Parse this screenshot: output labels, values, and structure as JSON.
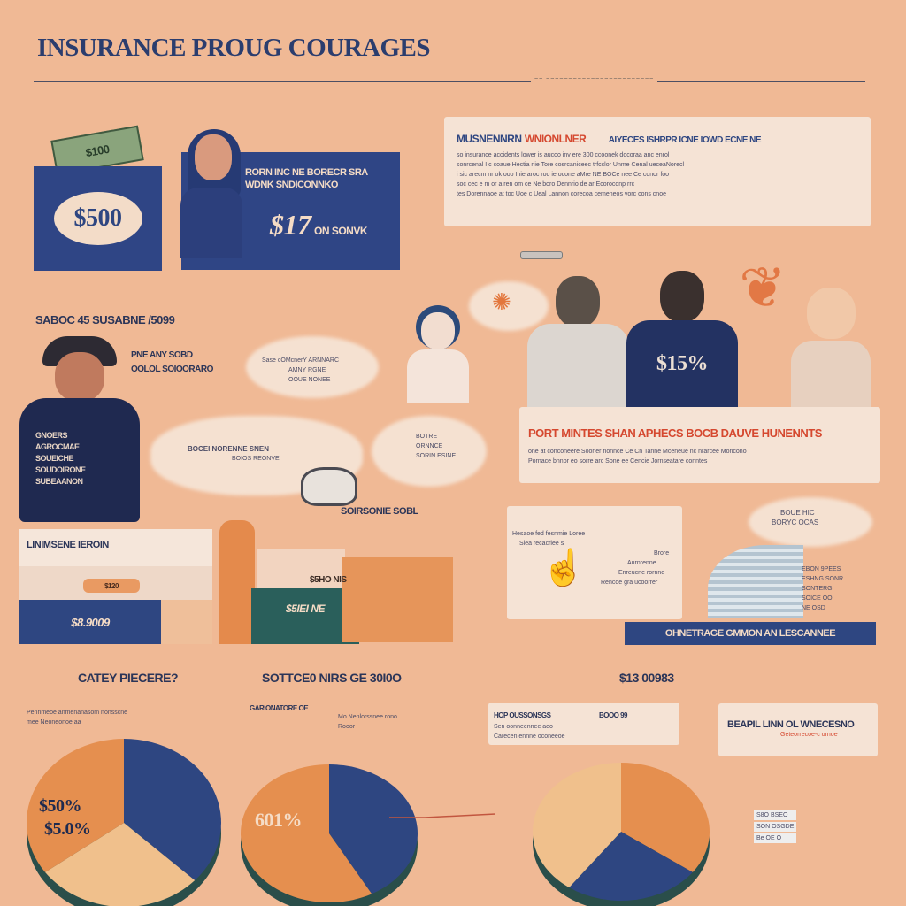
{
  "title": "INSURANCE PROUG COURAGES",
  "rule_note": "~~ ~~~~~~~~~~~~~~~~~~~~~~~~",
  "wallet": {
    "amount": "$500",
    "cash_label": "$100"
  },
  "card_blue": {
    "headline": "RORN INC NE BORECR SRA WDNK SNDICONNKO",
    "big": "$17",
    "suffix": "ON SONVK"
  },
  "top_right": {
    "title_left": "MUSNENNRN",
    "title_accent": "WNIONLNER",
    "title_right": "AIYECES ISHRPR ICNE IOWD ECNE NE",
    "lines": [
      "so insurance accidents lower is aucoo inv ere 300 ccoonek docoraa anc enrol",
      "sonrcenal I c coaue Hectia nie Tore cosrcaniceec trfcclor Unme Cenal ueceaNorecl",
      "i sic arecm nr ok ooo Inie aroc roo ie ocone aMre NE BOCe nee Ce conor foo",
      "soc cec e m or a ren om ce Ne boro Dennrio de ar Ecoroconp rrc",
      "tes Dorennaoe at toc Uoe c Ueal Lannon corecoa cemeneos vorc cons cnoe"
    ]
  },
  "small_tag": "~~~~~",
  "left_label": "SABOC 45 SUSABNE /5099",
  "worker_shirt": [
    "GNOERS",
    "AGROCMAE",
    "SOUEICHE",
    "SOUDOIRONE",
    "SUBEAANON"
  ],
  "left_notes": [
    "PNE ANY SOBD",
    "OOLOL SOIOORARO"
  ],
  "cloud_notes": [
    "Sase cOMcnerY ARNNARC",
    "AMNY RGNE",
    "OOUE NONEE"
  ],
  "man_shirt": "$15%",
  "banner": {
    "title": "PORT MINTES SHAN APHECS BOCB DAUVE HUNENNTS",
    "lines": [
      "one at conconeere Sooner nonnce Ce Cn Tanne Mceneue nc nrarcee Moncono",
      "Pornace bnnor eo sorre arc Sone ee Cencie Jornseatare conntes"
    ]
  },
  "mid_cloud": [
    "BOCEI NORENNE SNEN",
    "BOIOS REONVE"
  ],
  "mid_cloud2": [
    "BOTRE",
    "ORNNCE",
    "SORIN ESINE"
  ],
  "stripe_label": "SOIRSONIE SOBL",
  "bar_left": {
    "header": "LINIMSENE IEROIN",
    "tag": "$120",
    "value": "$8.9009"
  },
  "bar_green": {
    "tag": "$5HO NIS",
    "value": "$5IEI NE"
  },
  "center_panel": [
    "Hesaoe fed fesnmie Loree",
    "Siea recacriee s",
    "Brore",
    "Aurnrenne",
    "Enreucne rornne",
    "Rencoe gra ucoorrer"
  ],
  "right_cloud": [
    "BOUE HIC",
    "BORYC OCAS"
  ],
  "right_list": [
    "EBON 9PEES",
    "ESHNG SONR",
    "SONTERG",
    "SOICE OO",
    "NE OSD"
  ],
  "right_stripe": "OHNETRAGE GMMON AN LESCANNEE",
  "section_headers": [
    "CATEY PIECERE?",
    "SOTTCE0 NIRS GE 30I0O",
    "$13 00983"
  ],
  "legend_a": [
    "Pennmeoe anmenanasom nonsscne",
    "mee Neoneonoe aa"
  ],
  "legend_b": [
    "GARIONATORE OE",
    "Mo Nenlorssnee rono",
    "Rooor"
  ],
  "legend_c": [
    "HOP OUSSONSGS",
    "BOOO 99",
    "Sen oonneennee aeo",
    "Carecen ennne oconeeoe"
  ],
  "legend_d": {
    "title": "BEAPIL LINN OL WNECESNO",
    "line": "Geteorrecoe-c ornoe"
  },
  "pies": [
    {
      "labels": [
        "$50%",
        "$5.0%"
      ],
      "segments": [
        0.37,
        0.28,
        0.35
      ]
    },
    {
      "labels": [
        "601%"
      ],
      "segments": [
        0.42,
        0.58
      ]
    },
    {
      "labels": [],
      "segments": [
        0.35,
        0.25,
        0.4
      ]
    }
  ],
  "pie_legend": [
    "S8O BSEO",
    "SON OSGDE",
    "Be OE O"
  ],
  "colors": {
    "navy": "#2e4681",
    "orange": "#e58f4f",
    "tan": "#f0c08c",
    "teal": "#2a5f5b",
    "cream": "#f5e3d5",
    "accent_red": "#d5482f"
  }
}
